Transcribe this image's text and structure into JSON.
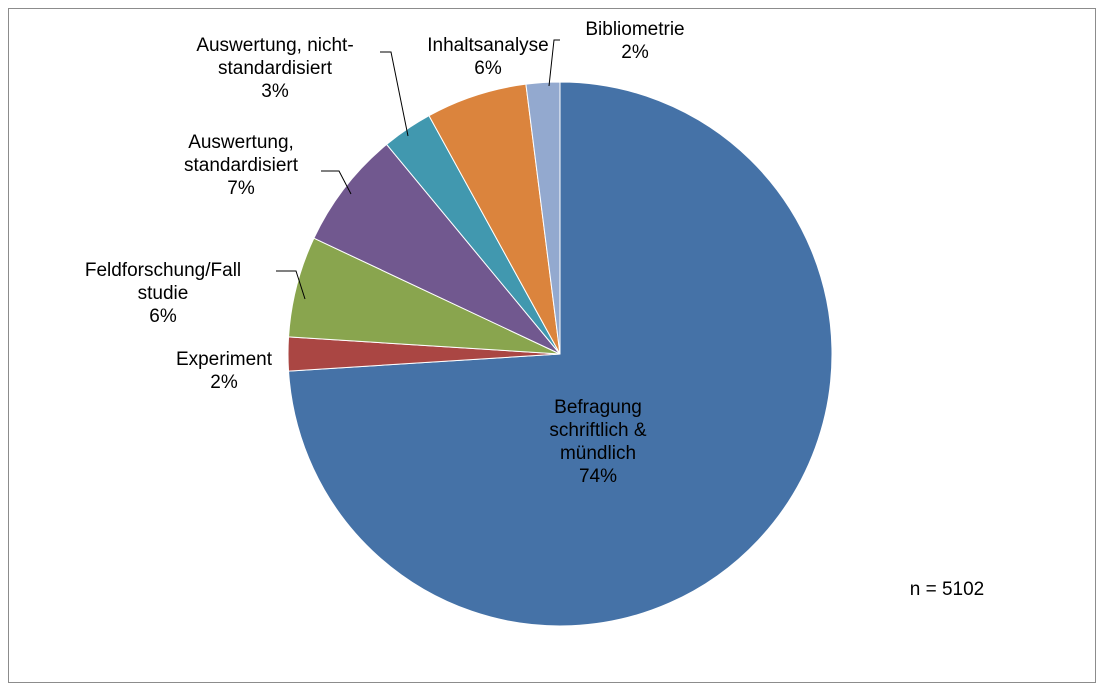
{
  "chart_data": {
    "type": "pie",
    "title": "",
    "start_angle_deg": 0,
    "direction": "clockwise",
    "categories": [
      "Befragung schriftlich & mündlich",
      "Experiment",
      "Feldforschung/Fall studie",
      "Auswertung, standardisiert",
      "Auswertung, nicht-standardisiert",
      "Inhaltsanalyse",
      "Bibliometrie"
    ],
    "values": [
      74,
      2,
      6,
      7,
      3,
      6,
      2
    ],
    "colors": [
      "#4572A7",
      "#AA4643",
      "#89A54E",
      "#71588F",
      "#4198AF",
      "#DB843D",
      "#93A9CF"
    ],
    "data_labels": [
      [
        "Befragung",
        "schriftlich &",
        "mündlich",
        "74%"
      ],
      [
        "Experiment",
        "2%"
      ],
      [
        "Feldforschung/Fall",
        "studie",
        "6%"
      ],
      [
        "Auswertung,",
        "standardisiert",
        "7%"
      ],
      [
        "Auswertung, nicht-",
        "standardisiert",
        "3%"
      ],
      [
        "Inhaltsanalyse",
        "6%"
      ],
      [
        "Bibliometrie",
        "2%"
      ]
    ],
    "annotation": "n = 5102",
    "legend": "none"
  }
}
